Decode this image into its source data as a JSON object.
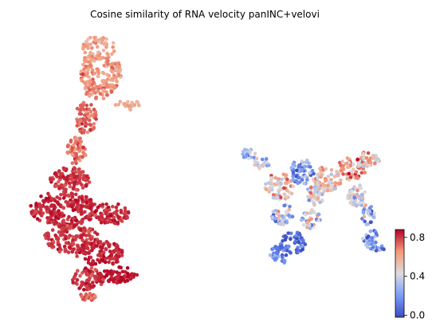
{
  "chart_data": {
    "type": "scatter",
    "title": "Cosine similarity of RNA velocity panINC+velovi",
    "xlabel": "",
    "ylabel": "",
    "axes_visible": false,
    "grid": false,
    "colormap": {
      "name": "coolwarm",
      "low_color": "#3b4cc0",
      "mid_color": "#dddddd",
      "high_color": "#b40426",
      "range": [
        -0.02,
        0.88
      ]
    },
    "colorbar": {
      "placement": "right",
      "ticks": [
        {
          "value": 0.0,
          "label": "0.0"
        },
        {
          "value": 0.4,
          "label": "0.4"
        },
        {
          "value": 0.8,
          "label": "0.8"
        }
      ]
    },
    "clusters": [
      {
        "id": "left-lineage",
        "approx_points": 1400,
        "value_range": [
          0.55,
          0.88
        ],
        "typical_value": 0.78
      },
      {
        "id": "right-lineage",
        "approx_points": 650,
        "value_range": [
          -0.02,
          0.75
        ],
        "typical_value": 0.38
      }
    ]
  }
}
